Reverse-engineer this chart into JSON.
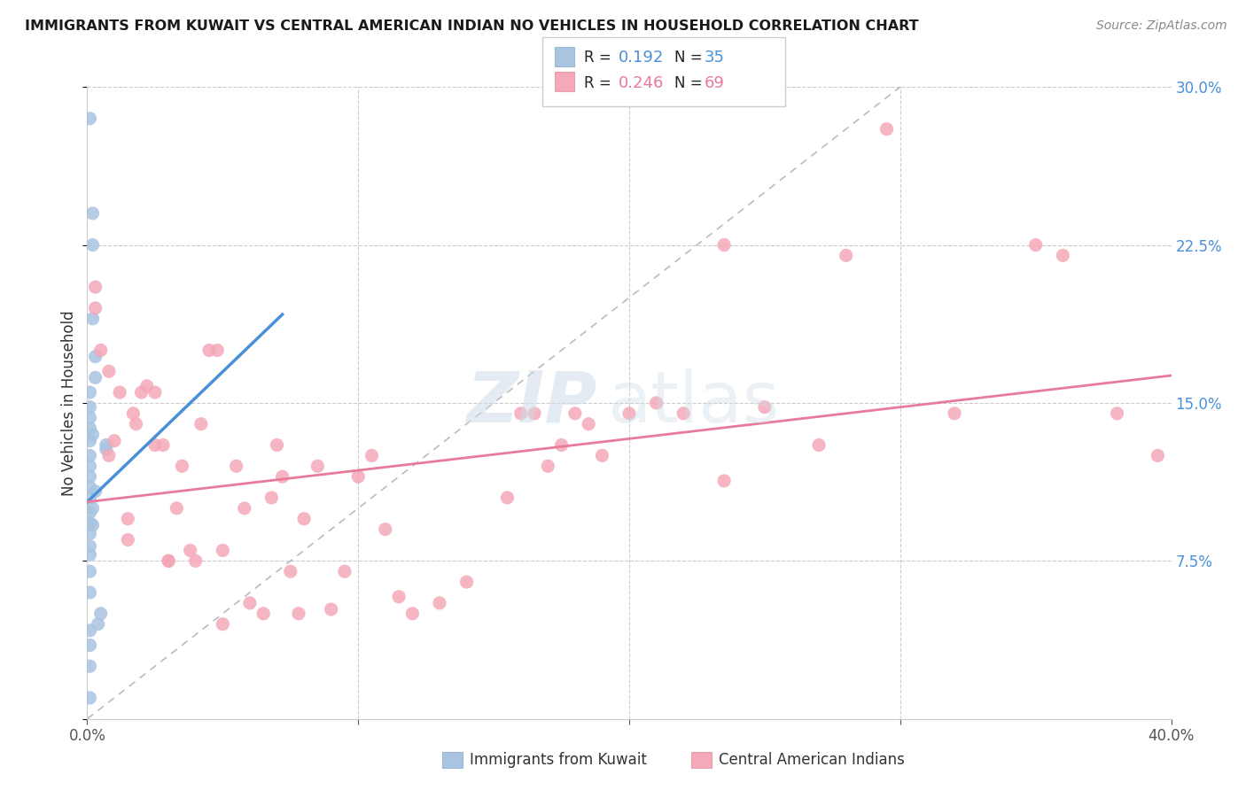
{
  "title": "IMMIGRANTS FROM KUWAIT VS CENTRAL AMERICAN INDIAN NO VEHICLES IN HOUSEHOLD CORRELATION CHART",
  "source": "Source: ZipAtlas.com",
  "ylabel": "No Vehicles in Household",
  "x_min": 0.0,
  "x_max": 0.4,
  "y_min": 0.0,
  "y_max": 0.3,
  "x_ticks": [
    0.0,
    0.1,
    0.2,
    0.3,
    0.4
  ],
  "y_ticks": [
    0.0,
    0.075,
    0.15,
    0.225,
    0.3
  ],
  "blue_color": "#a8c4e0",
  "pink_color": "#f4a8b8",
  "blue_line_color": "#4a90d9",
  "pink_line_color": "#e87a9a",
  "dashed_line_color": "#b0bec8",
  "legend_R1": "0.192",
  "legend_N1": "35",
  "legend_R2": "0.246",
  "legend_N2": "69",
  "legend_label1": "Immigrants from Kuwait",
  "legend_label2": "Central American Indians",
  "watermark_zip": "ZIP",
  "watermark_atlas": "atlas",
  "blue_scatter_x": [
    0.001,
    0.002,
    0.002,
    0.002,
    0.003,
    0.003,
    0.001,
    0.001,
    0.001,
    0.001,
    0.001,
    0.001,
    0.001,
    0.001,
    0.001,
    0.001,
    0.001,
    0.001,
    0.001,
    0.001,
    0.001,
    0.001,
    0.001,
    0.002,
    0.002,
    0.002,
    0.003,
    0.004,
    0.005,
    0.007,
    0.007,
    0.001,
    0.001,
    0.001,
    0.001
  ],
  "blue_scatter_y": [
    0.285,
    0.24,
    0.225,
    0.19,
    0.172,
    0.162,
    0.155,
    0.148,
    0.143,
    0.138,
    0.132,
    0.125,
    0.12,
    0.115,
    0.11,
    0.105,
    0.098,
    0.093,
    0.088,
    0.082,
    0.078,
    0.07,
    0.06,
    0.135,
    0.1,
    0.092,
    0.108,
    0.045,
    0.05,
    0.13,
    0.128,
    0.042,
    0.035,
    0.025,
    0.01
  ],
  "pink_scatter_x": [
    0.003,
    0.005,
    0.008,
    0.008,
    0.01,
    0.012,
    0.015,
    0.015,
    0.017,
    0.018,
    0.02,
    0.022,
    0.025,
    0.025,
    0.028,
    0.03,
    0.03,
    0.033,
    0.035,
    0.038,
    0.04,
    0.042,
    0.045,
    0.048,
    0.05,
    0.05,
    0.055,
    0.058,
    0.06,
    0.065,
    0.068,
    0.07,
    0.072,
    0.075,
    0.078,
    0.08,
    0.085,
    0.09,
    0.095,
    0.1,
    0.105,
    0.11,
    0.115,
    0.12,
    0.13,
    0.14,
    0.155,
    0.16,
    0.165,
    0.175,
    0.18,
    0.185,
    0.19,
    0.2,
    0.21,
    0.22,
    0.235,
    0.25,
    0.27,
    0.28,
    0.295,
    0.32,
    0.35,
    0.36,
    0.38,
    0.395,
    0.235,
    0.003,
    0.17
  ],
  "pink_scatter_y": [
    0.205,
    0.175,
    0.165,
    0.125,
    0.132,
    0.155,
    0.095,
    0.085,
    0.145,
    0.14,
    0.155,
    0.158,
    0.155,
    0.13,
    0.13,
    0.075,
    0.075,
    0.1,
    0.12,
    0.08,
    0.075,
    0.14,
    0.175,
    0.175,
    0.08,
    0.045,
    0.12,
    0.1,
    0.055,
    0.05,
    0.105,
    0.13,
    0.115,
    0.07,
    0.05,
    0.095,
    0.12,
    0.052,
    0.07,
    0.115,
    0.125,
    0.09,
    0.058,
    0.05,
    0.055,
    0.065,
    0.105,
    0.145,
    0.145,
    0.13,
    0.145,
    0.14,
    0.125,
    0.145,
    0.15,
    0.145,
    0.225,
    0.148,
    0.13,
    0.22,
    0.28,
    0.145,
    0.225,
    0.22,
    0.145,
    0.125,
    0.113,
    0.195,
    0.12
  ],
  "blue_line_x": [
    0.0,
    0.072
  ],
  "blue_line_y": [
    0.103,
    0.192
  ],
  "pink_line_x": [
    0.0,
    0.4
  ],
  "pink_line_y": [
    0.103,
    0.163
  ],
  "diag_line_x": [
    0.0,
    0.3
  ],
  "diag_line_y": [
    0.0,
    0.3
  ]
}
